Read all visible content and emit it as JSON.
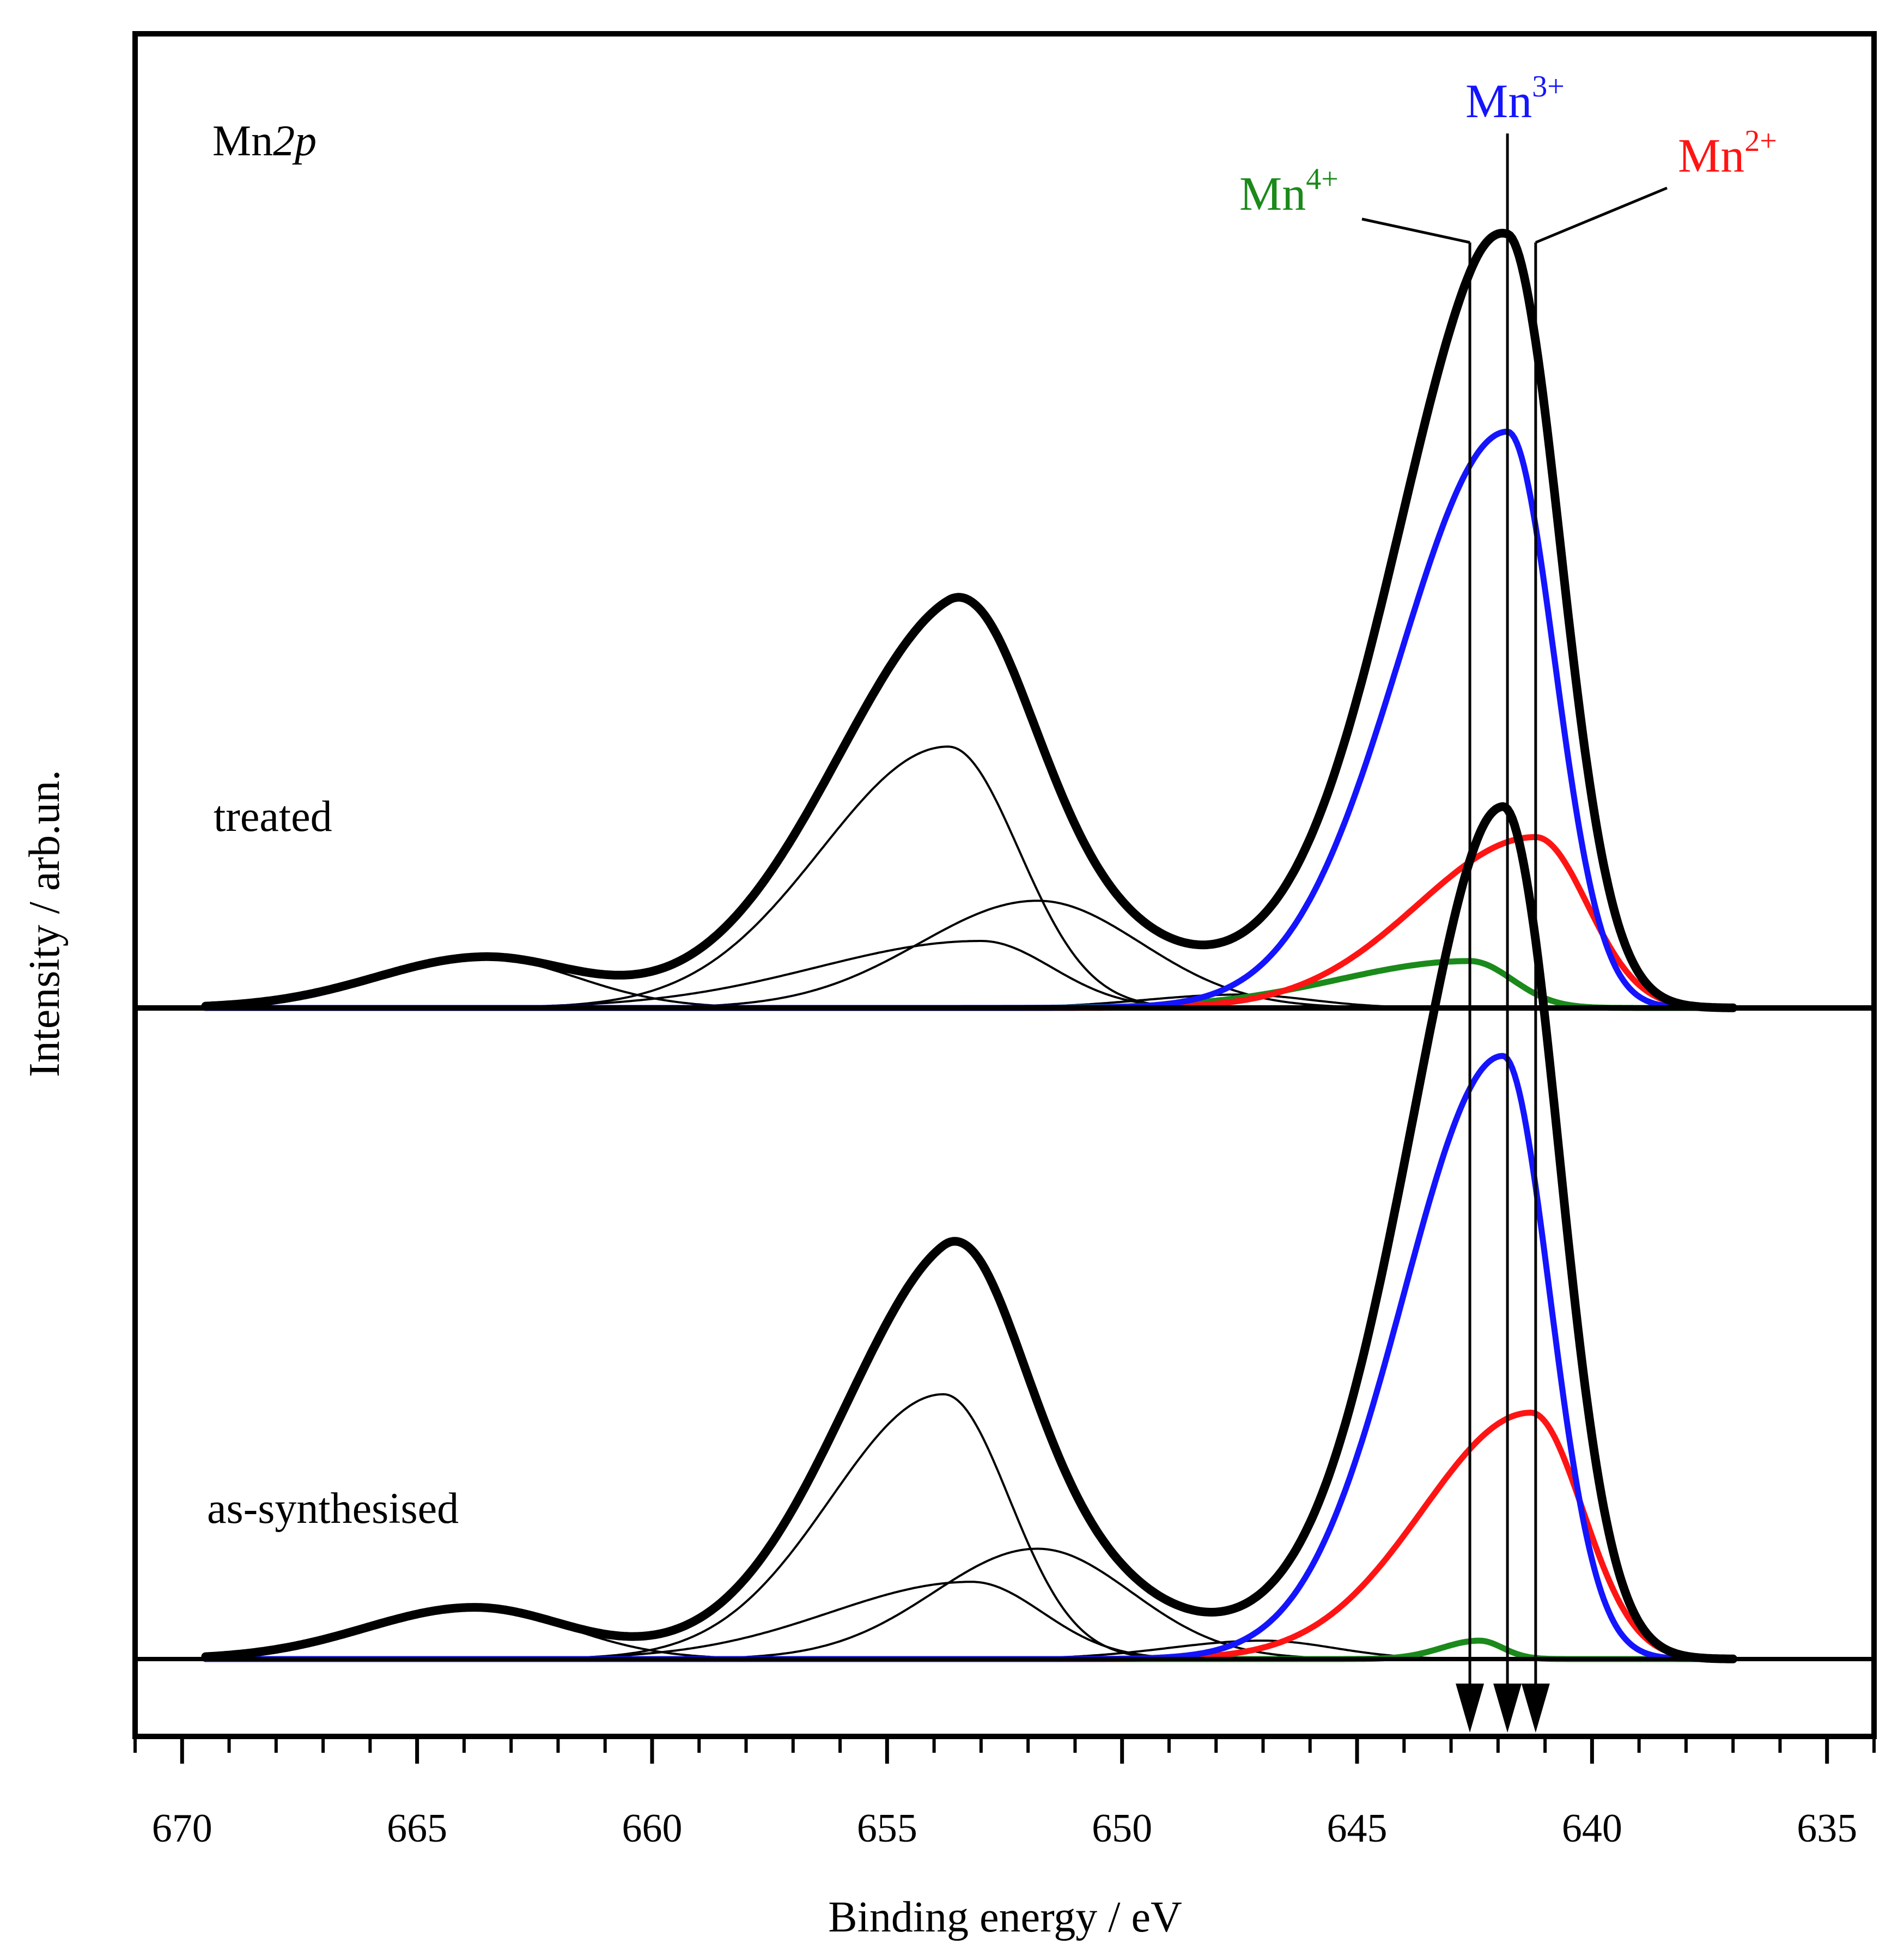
{
  "chart_data": {
    "type": "line",
    "title": "",
    "xlabel": "Binding energy / eV",
    "ylabel": "Intensity / arb.un.",
    "xlim": [
      671,
      634
    ],
    "x_reversed": true,
    "xticks": [
      670,
      665,
      660,
      655,
      650,
      645,
      640,
      635
    ],
    "x_minor_tick_step": 1,
    "yticks": false,
    "grid": false,
    "legend": "none",
    "annotation": {
      "prefix": "Mn",
      "italic": "2p"
    },
    "panels": [
      {
        "label": "treated",
        "order": "top"
      },
      {
        "label": "as-synthesised",
        "order": "bottom"
      }
    ],
    "marker_labels": [
      {
        "base": "Mn",
        "sup": "4+",
        "color": "#1a8a1a",
        "x": 642.6
      },
      {
        "base": "Mn",
        "sup": "3+",
        "color": "#1414ff",
        "x": 641.8
      },
      {
        "base": "Mn",
        "sup": "2+",
        "color": "#ff1414",
        "x": 641.2
      }
    ],
    "colors": {
      "Mn4+": "#1a8a1a",
      "Mn3+": "#1414ff",
      "Mn2+": "#ff1414",
      "envelope": "#000000",
      "components": "#000000"
    },
    "series": [
      {
        "panel": "treated",
        "role": "Mn3+",
        "color": "#1414ff",
        "linewidth": "thick",
        "peaks": [
          {
            "center": 641.8,
            "amplitude": 0.86,
            "width_low_be": 1.0,
            "width_high_be": 2.3
          }
        ]
      },
      {
        "panel": "treated",
        "role": "Mn2+",
        "color": "#ff1414",
        "linewidth": "thick",
        "peaks": [
          {
            "center": 641.2,
            "amplitude": 0.255,
            "width_low_be": 1.1,
            "width_high_be": 2.5
          }
        ]
      },
      {
        "panel": "treated",
        "role": "Mn4+",
        "color": "#1a8a1a",
        "linewidth": "thick",
        "peaks": [
          {
            "center": 642.6,
            "amplitude": 0.07,
            "width_low_be": 0.9,
            "width_high_be": 2.8
          }
        ]
      },
      {
        "panel": "treated",
        "role": "component",
        "color": "#000000",
        "linewidth": "thin",
        "peaks": [
          {
            "center": 653.7,
            "amplitude": 0.39,
            "width_low_be": 1.5,
            "width_high_be": 2.7
          }
        ]
      },
      {
        "panel": "treated",
        "role": "component",
        "color": "#000000",
        "linewidth": "thin",
        "peaks": [
          {
            "center": 651.8,
            "amplitude": 0.16,
            "width_low_be": 2.2,
            "width_high_be": 2.5
          }
        ]
      },
      {
        "panel": "treated",
        "role": "component",
        "color": "#000000",
        "linewidth": "thin",
        "peaks": [
          {
            "center": 653.0,
            "amplitude": 0.1,
            "width_low_be": 1.5,
            "width_high_be": 3.5
          }
        ]
      },
      {
        "panel": "treated",
        "role": "component",
        "color": "#000000",
        "linewidth": "thin",
        "peaks": [
          {
            "center": 663.6,
            "amplitude": 0.075,
            "width_low_be": 2.0,
            "width_high_be": 2.3
          }
        ]
      },
      {
        "panel": "treated",
        "role": "component",
        "color": "#000000",
        "linewidth": "thin",
        "peaks": [
          {
            "center": 647.5,
            "amplitude": 0.02,
            "width_low_be": 1.5,
            "width_high_be": 2.0
          }
        ]
      },
      {
        "panel": "treated",
        "role": "fit-envelope",
        "color": "#000000",
        "linewidth": "extra-thick",
        "peaks": [
          {
            "center": 641.8,
            "amplitude": 0.86,
            "width_low_be": 1.0,
            "width_high_be": 2.3
          },
          {
            "center": 641.2,
            "amplitude": 0.255,
            "width_low_be": 1.1,
            "width_high_be": 2.5
          },
          {
            "center": 642.6,
            "amplitude": 0.07,
            "width_low_be": 0.9,
            "width_high_be": 2.8
          },
          {
            "center": 653.7,
            "amplitude": 0.39,
            "width_low_be": 1.5,
            "width_high_be": 2.7
          },
          {
            "center": 651.8,
            "amplitude": 0.16,
            "width_low_be": 2.2,
            "width_high_be": 2.5
          },
          {
            "center": 653.0,
            "amplitude": 0.1,
            "width_low_be": 1.5,
            "width_high_be": 3.5
          },
          {
            "center": 663.6,
            "amplitude": 0.075,
            "width_low_be": 2.0,
            "width_high_be": 2.3
          },
          {
            "center": 647.5,
            "amplitude": 0.02,
            "width_low_be": 1.5,
            "width_high_be": 2.0
          }
        ]
      },
      {
        "panel": "as-synthesised",
        "role": "Mn3+",
        "color": "#1414ff",
        "linewidth": "thick",
        "peaks": [
          {
            "center": 641.9,
            "amplitude": 0.82,
            "width_low_be": 1.0,
            "width_high_be": 2.1
          }
        ]
      },
      {
        "panel": "as-synthesised",
        "role": "Mn2+",
        "color": "#ff1414",
        "linewidth": "thick",
        "peaks": [
          {
            "center": 641.3,
            "amplitude": 0.335,
            "width_low_be": 1.1,
            "width_high_be": 2.3
          }
        ]
      },
      {
        "panel": "as-synthesised",
        "role": "Mn4+",
        "color": "#1a8a1a",
        "linewidth": "thick",
        "peaks": [
          {
            "center": 642.4,
            "amplitude": 0.025,
            "width_low_be": 0.5,
            "width_high_be": 0.8
          }
        ]
      },
      {
        "panel": "as-synthesised",
        "role": "component",
        "color": "#000000",
        "linewidth": "thin",
        "peaks": [
          {
            "center": 653.8,
            "amplitude": 0.36,
            "width_low_be": 1.4,
            "width_high_be": 2.4
          }
        ]
      },
      {
        "panel": "as-synthesised",
        "role": "component",
        "color": "#000000",
        "linewidth": "thin",
        "peaks": [
          {
            "center": 651.8,
            "amplitude": 0.15,
            "width_low_be": 2.0,
            "width_high_be": 2.2
          }
        ]
      },
      {
        "panel": "as-synthesised",
        "role": "component",
        "color": "#000000",
        "linewidth": "thin",
        "peaks": [
          {
            "center": 653.2,
            "amplitude": 0.105,
            "width_low_be": 1.5,
            "width_high_be": 3.0
          }
        ]
      },
      {
        "panel": "as-synthesised",
        "role": "component",
        "color": "#000000",
        "linewidth": "thin",
        "peaks": [
          {
            "center": 663.8,
            "amplitude": 0.07,
            "width_low_be": 2.0,
            "width_high_be": 2.3
          }
        ]
      },
      {
        "panel": "as-synthesised",
        "role": "component",
        "color": "#000000",
        "linewidth": "thin",
        "peaks": [
          {
            "center": 647.0,
            "amplitude": 0.025,
            "width_low_be": 1.5,
            "width_high_be": 2.0
          }
        ]
      },
      {
        "panel": "as-synthesised",
        "role": "fit-envelope",
        "color": "#000000",
        "linewidth": "extra-thick",
        "peaks": [
          {
            "center": 641.9,
            "amplitude": 0.82,
            "width_low_be": 1.0,
            "width_high_be": 2.1
          },
          {
            "center": 641.3,
            "amplitude": 0.335,
            "width_low_be": 1.1,
            "width_high_be": 2.3
          },
          {
            "center": 642.4,
            "amplitude": 0.025,
            "width_low_be": 0.5,
            "width_high_be": 0.8
          },
          {
            "center": 653.8,
            "amplitude": 0.36,
            "width_low_be": 1.4,
            "width_high_be": 2.4
          },
          {
            "center": 651.8,
            "amplitude": 0.15,
            "width_low_be": 2.0,
            "width_high_be": 2.2
          },
          {
            "center": 653.2,
            "amplitude": 0.105,
            "width_low_be": 1.5,
            "width_high_be": 3.0
          },
          {
            "center": 663.8,
            "amplitude": 0.07,
            "width_low_be": 2.0,
            "width_high_be": 2.3
          },
          {
            "center": 647.0,
            "amplitude": 0.025,
            "width_low_be": 1.5,
            "width_high_be": 2.0
          }
        ]
      }
    ]
  }
}
